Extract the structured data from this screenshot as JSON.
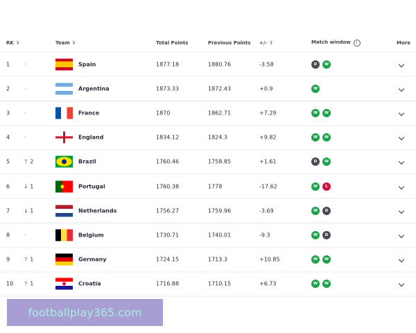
{
  "header": {
    "rk": "RK",
    "team": "Team",
    "total": "Total Points",
    "previous": "Previous Points",
    "diff": "+/-",
    "match_window": "Match window",
    "more": "More"
  },
  "colors": {
    "win": "#1fa34a",
    "draw": "#4a4a55",
    "loss": "#d0143c",
    "up": "#2a9d6a",
    "down": "#b0304a"
  },
  "rows": [
    {
      "rk": "1",
      "move": "",
      "dir": "none",
      "team": "Spain",
      "flag": "spain",
      "total": "1877.18",
      "prev": "1880.76",
      "diff": "-3.58",
      "results": [
        "D",
        "W"
      ]
    },
    {
      "rk": "2",
      "move": "",
      "dir": "none",
      "team": "Argentina",
      "flag": "argentina",
      "total": "1873.33",
      "prev": "1872.43",
      "diff": "+0.9",
      "results": [
        "W"
      ]
    },
    {
      "rk": "3",
      "move": "",
      "dir": "none",
      "team": "France",
      "flag": "france",
      "total": "1870",
      "prev": "1862.71",
      "diff": "+7.29",
      "results": [
        "W",
        "W"
      ]
    },
    {
      "rk": "4",
      "move": "",
      "dir": "none",
      "team": "England",
      "flag": "england",
      "total": "1834.12",
      "prev": "1824.3",
      "diff": "+9.82",
      "results": [
        "W",
        "W"
      ]
    },
    {
      "rk": "5",
      "move": "2",
      "dir": "up",
      "team": "Brazil",
      "flag": "brazil",
      "total": "1760.46",
      "prev": "1758.85",
      "diff": "+1.61",
      "results": [
        "D",
        "W"
      ]
    },
    {
      "rk": "6",
      "move": "1",
      "dir": "down",
      "team": "Portugal",
      "flag": "portugal",
      "total": "1760.38",
      "prev": "1778",
      "diff": "-17.62",
      "results": [
        "W",
        "L"
      ]
    },
    {
      "rk": "7",
      "move": "1",
      "dir": "down",
      "team": "Netherlands",
      "flag": "netherlands",
      "total": "1756.27",
      "prev": "1759.96",
      "diff": "-3.69",
      "results": [
        "W",
        "D"
      ]
    },
    {
      "rk": "8",
      "move": "",
      "dir": "none",
      "team": "Belgium",
      "flag": "belgium",
      "total": "1730.71",
      "prev": "1740.01",
      "diff": "-9.3",
      "results": [
        "W",
        "D"
      ]
    },
    {
      "rk": "9",
      "move": "1",
      "dir": "up",
      "team": "Germany",
      "flag": "germany",
      "total": "1724.15",
      "prev": "1713.3",
      "diff": "+10.85",
      "results": [
        "W",
        "W"
      ]
    },
    {
      "rk": "10",
      "move": "1",
      "dir": "up",
      "team": "Croatia",
      "flag": "croatia",
      "total": "1716.88",
      "prev": "1710.15",
      "diff": "+6.73",
      "results": [
        "W",
        "W"
      ]
    }
  ],
  "watermark": "footballplay365.com"
}
